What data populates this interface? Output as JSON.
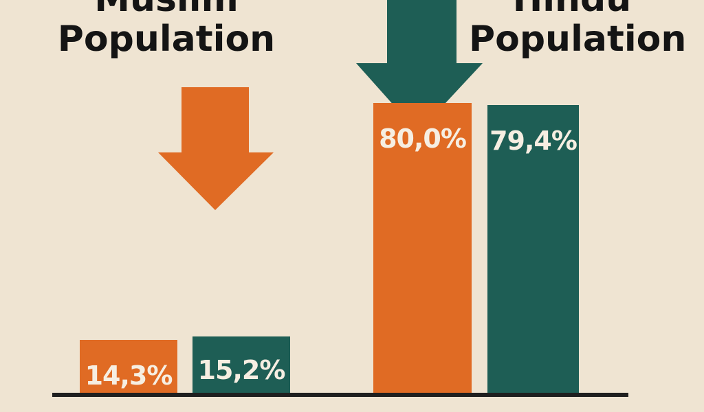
{
  "chart_data": {
    "type": "bar",
    "groups": [
      {
        "title_lines": [
          "Muslim",
          "Population"
        ],
        "arrow_color": "#e06b24"
      },
      {
        "title_lines": [
          "Hindu",
          "Population"
        ],
        "arrow_color": "#1e5e55"
      }
    ],
    "series": [
      {
        "color": "#e06b24",
        "values": [
          14.3,
          80.0
        ]
      },
      {
        "color": "#1e5e55",
        "values": [
          15.2,
          79.4
        ]
      }
    ],
    "value_labels": [
      [
        "14,3%",
        "80,0%"
      ],
      [
        "15,2%",
        "79,4%"
      ]
    ],
    "grid": false
  }
}
